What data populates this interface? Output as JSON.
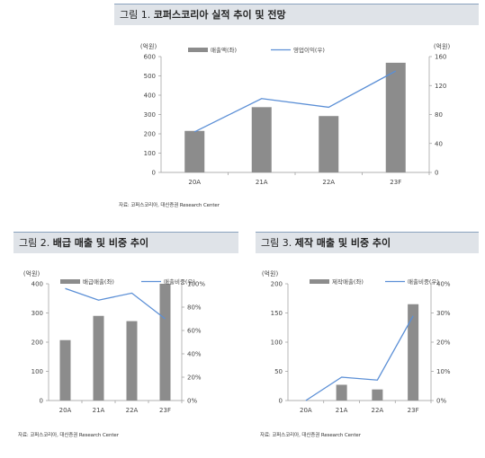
{
  "fig1": {
    "prefix": "그림 1.",
    "title": "코퍼스코리아 실적 추이 및 전망",
    "source": "자료: 코퍼스코리아, 대신증권 Research Center"
  },
  "fig2": {
    "prefix": "그림 2.",
    "title": "배급 매출 및 비중 추이",
    "source": "자료: 코퍼스코리아, 대신증권 Research Center"
  },
  "fig3": {
    "prefix": "그림 3.",
    "title": "제작 매출 및 비중 추이",
    "source": "자료: 코퍼스코리아, 대신증권 Research Center"
  },
  "chart_data": [
    {
      "type": "bar+line",
      "categories": [
        "20A",
        "21A",
        "22A",
        "23F"
      ],
      "bar_series": {
        "name": "매출액(좌)",
        "values": [
          215,
          338,
          292,
          568
        ]
      },
      "line_series": {
        "name": "영업이익(우)",
        "values": [
          56,
          102,
          90,
          140
        ]
      },
      "y_left_label": "(억원)",
      "y_left_lim": [
        0,
        600
      ],
      "y_left_ticks": [
        0,
        100,
        200,
        300,
        400,
        500,
        600
      ],
      "y_right_label": "(억원)",
      "y_right_lim": [
        0,
        160
      ],
      "y_right_ticks": [
        0,
        40,
        80,
        120,
        160
      ],
      "bar_color": "#8c8c8c",
      "line_color": "#5b8fd6",
      "legend": "top-left"
    },
    {
      "type": "bar+line",
      "categories": [
        "20A",
        "21A",
        "22A",
        "23F"
      ],
      "bar_series": {
        "name": "배급매출(좌)",
        "values": [
          207,
          290,
          272,
          400
        ]
      },
      "line_series": {
        "name": "매출비중(우)",
        "values": [
          96,
          86,
          92,
          70
        ]
      },
      "y_left_label": "(억원)",
      "y_left_lim": [
        0,
        400
      ],
      "y_left_ticks": [
        0,
        100,
        200,
        300,
        400
      ],
      "y_right_lim": [
        0,
        100
      ],
      "y_right_unit": "%",
      "y_right_ticks": [
        0,
        20,
        40,
        60,
        80,
        100
      ],
      "bar_color": "#8c8c8c",
      "line_color": "#5b8fd6",
      "legend": "top"
    },
    {
      "type": "bar+line",
      "categories": [
        "20A",
        "21A",
        "22A",
        "23F"
      ],
      "bar_series": {
        "name": "제작매출(좌)",
        "values": [
          0,
          27,
          19,
          165
        ]
      },
      "line_series": {
        "name": "매출비중(우)",
        "values": [
          0,
          8,
          7,
          29
        ]
      },
      "y_left_label": "(억원)",
      "y_left_lim": [
        0,
        200
      ],
      "y_left_ticks": [
        0,
        50,
        100,
        150,
        200
      ],
      "y_right_lim": [
        0,
        40
      ],
      "y_right_unit": "%",
      "y_right_ticks": [
        0,
        10,
        20,
        30,
        40
      ],
      "bar_color": "#8c8c8c",
      "line_color": "#5b8fd6",
      "legend": "top"
    }
  ]
}
